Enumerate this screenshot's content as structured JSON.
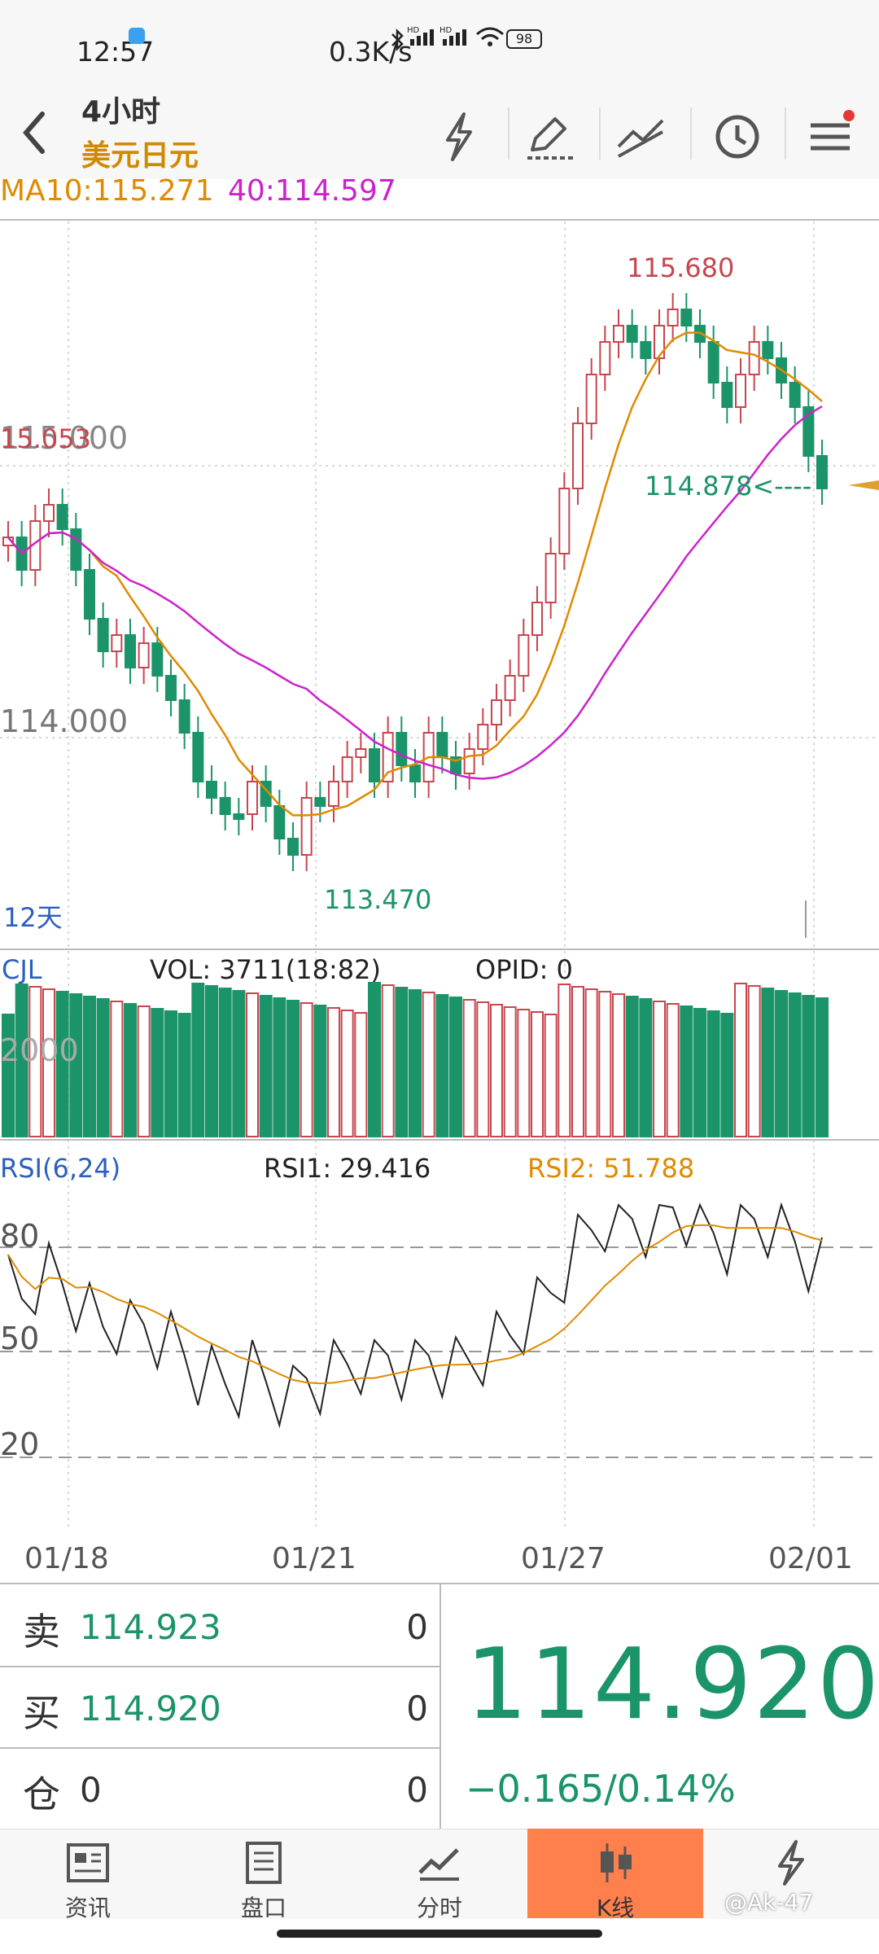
{
  "status_bar": {
    "time": "12:57",
    "network_speed": "0.3K/s",
    "battery": "98"
  },
  "header": {
    "period": "4小时",
    "symbol": "美元日元"
  },
  "indicators": {
    "ma10_label": "MA10:115.271",
    "ma40_label": "40:114.597",
    "ma10_color": "#e08a00",
    "ma40_color": "#cc22cc"
  },
  "price_chart": {
    "y_tick_115": "115.000",
    "y_tick_114": "114.000",
    "left_high_label": "15.053",
    "high_label": "115.680",
    "low_label": "113.470",
    "last_price_label": "114.878<----",
    "period_note": "12天",
    "up_color": "#c8454d",
    "down_color": "#1a9468"
  },
  "volume_panel": {
    "title": "CJL",
    "vol_label": "VOL: 3711(18:82)",
    "opid_label": "OPID: 0",
    "y_tick": "2000"
  },
  "rsi_panel": {
    "title": "RSI(6,24)",
    "rsi1_label": "RSI1: 29.416",
    "rsi2_label": "RSI2: 51.788",
    "y_ticks": [
      "80",
      "50",
      "20"
    ]
  },
  "x_axis": {
    "dates": [
      "01/18",
      "01/21",
      "01/27",
      "02/01"
    ]
  },
  "quote": {
    "sell_label": "卖",
    "sell_price": "114.923",
    "sell_qty": "0",
    "buy_label": "买",
    "buy_price": "114.920",
    "buy_qty": "0",
    "position_label": "仓",
    "position_value": "0",
    "position_qty": "0",
    "last_price": "114.920",
    "change": "−0.165/0.14%"
  },
  "tabs": [
    {
      "label": "资讯",
      "icon": "news-icon"
    },
    {
      "label": "盘口",
      "icon": "orderbook-icon"
    },
    {
      "label": "分时",
      "icon": "timeshare-icon"
    },
    {
      "label": "K线",
      "icon": "candlestick-icon"
    },
    {
      "label": "",
      "icon": "flash-icon"
    }
  ],
  "watermark": "@Ak-47"
}
